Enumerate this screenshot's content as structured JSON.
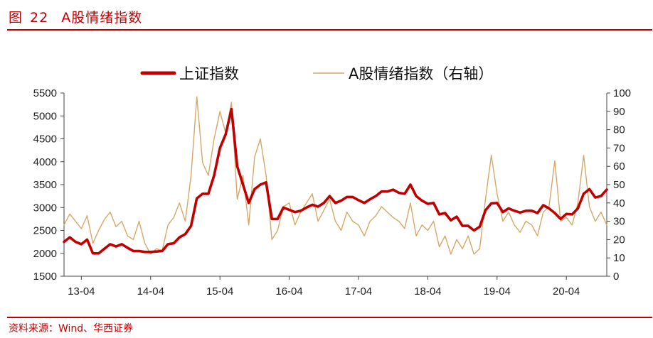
{
  "header": {
    "figure_label": "图",
    "figure_number": "22",
    "title": "A股情绪指数"
  },
  "source": "资料来源：Wind、华西证券",
  "colors": {
    "accent": "#c00000",
    "series_main": "#c00000",
    "series_sentiment": "#d4a868"
  },
  "chart_data": {
    "type": "line",
    "title": "A股情绪指数",
    "x_ticks": [
      "13-04",
      "14-04",
      "15-04",
      "16-04",
      "17-04",
      "18-04",
      "19-04",
      "20-04"
    ],
    "y_left": {
      "ticks": [
        1500,
        2000,
        2500,
        3000,
        3500,
        4000,
        4500,
        5000,
        5500
      ],
      "range": [
        1500,
        5500
      ]
    },
    "y_right": {
      "ticks": [
        0,
        10,
        20,
        30,
        40,
        50,
        60,
        70,
        80,
        90,
        100
      ],
      "range": [
        0,
        100
      ]
    },
    "legend": {
      "position": "top-center"
    },
    "grid": false,
    "series": [
      {
        "name": "上证指数",
        "axis": "left",
        "color": "#c00000",
        "points": [
          [
            "13-01",
            2250
          ],
          [
            "13-02",
            2350
          ],
          [
            "13-03",
            2250
          ],
          [
            "13-04",
            2200
          ],
          [
            "13-05",
            2300
          ],
          [
            "13-06",
            2000
          ],
          [
            "13-07",
            2000
          ],
          [
            "13-08",
            2100
          ],
          [
            "13-09",
            2200
          ],
          [
            "13-10",
            2150
          ],
          [
            "13-11",
            2200
          ],
          [
            "13-12",
            2120
          ],
          [
            "14-01",
            2050
          ],
          [
            "14-02",
            2050
          ],
          [
            "14-03",
            2030
          ],
          [
            "14-04",
            2030
          ],
          [
            "14-05",
            2040
          ],
          [
            "14-06",
            2050
          ],
          [
            "14-07",
            2200
          ],
          [
            "14-08",
            2220
          ],
          [
            "14-09",
            2350
          ],
          [
            "14-10",
            2420
          ],
          [
            "14-11",
            2600
          ],
          [
            "14-12",
            3200
          ],
          [
            "15-01",
            3300
          ],
          [
            "15-02",
            3300
          ],
          [
            "15-03",
            3700
          ],
          [
            "15-04",
            4300
          ],
          [
            "15-05",
            4600
          ],
          [
            "15-06",
            5150
          ],
          [
            "15-07",
            3900
          ],
          [
            "15-08",
            3500
          ],
          [
            "15-09",
            3100
          ],
          [
            "15-10",
            3400
          ],
          [
            "15-11",
            3500
          ],
          [
            "15-12",
            3550
          ],
          [
            "16-01",
            2750
          ],
          [
            "16-02",
            2750
          ],
          [
            "16-03",
            3000
          ],
          [
            "16-04",
            2950
          ],
          [
            "16-05",
            2900
          ],
          [
            "16-06",
            2930
          ],
          [
            "16-07",
            3000
          ],
          [
            "16-08",
            3060
          ],
          [
            "16-09",
            3020
          ],
          [
            "16-10",
            3100
          ],
          [
            "16-11",
            3250
          ],
          [
            "16-12",
            3100
          ],
          [
            "17-01",
            3150
          ],
          [
            "17-02",
            3230
          ],
          [
            "17-03",
            3230
          ],
          [
            "17-04",
            3160
          ],
          [
            "17-05",
            3100
          ],
          [
            "17-06",
            3180
          ],
          [
            "17-07",
            3250
          ],
          [
            "17-08",
            3350
          ],
          [
            "17-09",
            3350
          ],
          [
            "17-10",
            3390
          ],
          [
            "17-11",
            3320
          ],
          [
            "17-12",
            3300
          ],
          [
            "18-01",
            3500
          ],
          [
            "18-02",
            3250
          ],
          [
            "18-03",
            3150
          ],
          [
            "18-04",
            3080
          ],
          [
            "18-05",
            3100
          ],
          [
            "18-06",
            2850
          ],
          [
            "18-07",
            2880
          ],
          [
            "18-08",
            2720
          ],
          [
            "18-09",
            2800
          ],
          [
            "18-10",
            2600
          ],
          [
            "18-11",
            2600
          ],
          [
            "18-12",
            2500
          ],
          [
            "19-01",
            2580
          ],
          [
            "19-02",
            2940
          ],
          [
            "19-03",
            3090
          ],
          [
            "19-04",
            3100
          ],
          [
            "19-05",
            2900
          ],
          [
            "19-06",
            2980
          ],
          [
            "19-07",
            2930
          ],
          [
            "19-08",
            2890
          ],
          [
            "19-09",
            2930
          ],
          [
            "19-10",
            2930
          ],
          [
            "19-11",
            2880
          ],
          [
            "19-12",
            3050
          ],
          [
            "20-01",
            2980
          ],
          [
            "20-02",
            2880
          ],
          [
            "20-03",
            2750
          ],
          [
            "20-04",
            2860
          ],
          [
            "20-05",
            2850
          ],
          [
            "20-06",
            2980
          ],
          [
            "20-07",
            3300
          ],
          [
            "20-08",
            3400
          ],
          [
            "20-09",
            3220
          ],
          [
            "20-10",
            3250
          ],
          [
            "20-11",
            3390
          ]
        ]
      },
      {
        "name": "A股情绪指数（右轴）",
        "axis": "right",
        "color": "#d4a868",
        "points": [
          [
            "13-01",
            28
          ],
          [
            "13-02",
            34
          ],
          [
            "13-03",
            30
          ],
          [
            "13-04",
            26
          ],
          [
            "13-05",
            33
          ],
          [
            "13-06",
            18
          ],
          [
            "13-07",
            25
          ],
          [
            "13-08",
            31
          ],
          [
            "13-09",
            35
          ],
          [
            "13-10",
            27
          ],
          [
            "13-11",
            30
          ],
          [
            "13-12",
            22
          ],
          [
            "14-01",
            20
          ],
          [
            "14-02",
            30
          ],
          [
            "14-03",
            18
          ],
          [
            "14-04",
            12
          ],
          [
            "14-05",
            15
          ],
          [
            "14-06",
            14
          ],
          [
            "14-07",
            28
          ],
          [
            "14-08",
            32
          ],
          [
            "14-09",
            40
          ],
          [
            "14-10",
            30
          ],
          [
            "14-11",
            55
          ],
          [
            "14-12",
            98
          ],
          [
            "15-01",
            62
          ],
          [
            "15-02",
            55
          ],
          [
            "15-03",
            75
          ],
          [
            "15-04",
            90
          ],
          [
            "15-05",
            78
          ],
          [
            "15-06",
            95
          ],
          [
            "15-07",
            42
          ],
          [
            "15-08",
            55
          ],
          [
            "15-09",
            28
          ],
          [
            "15-10",
            65
          ],
          [
            "15-11",
            75
          ],
          [
            "15-12",
            55
          ],
          [
            "16-01",
            20
          ],
          [
            "16-02",
            25
          ],
          [
            "16-03",
            38
          ],
          [
            "16-04",
            40
          ],
          [
            "16-05",
            28
          ],
          [
            "16-06",
            35
          ],
          [
            "16-07",
            40
          ],
          [
            "16-08",
            45
          ],
          [
            "16-09",
            30
          ],
          [
            "16-10",
            36
          ],
          [
            "16-11",
            42
          ],
          [
            "16-12",
            30
          ],
          [
            "17-01",
            25
          ],
          [
            "17-02",
            35
          ],
          [
            "17-03",
            30
          ],
          [
            "17-04",
            28
          ],
          [
            "17-05",
            22
          ],
          [
            "17-06",
            30
          ],
          [
            "17-07",
            33
          ],
          [
            "17-08",
            38
          ],
          [
            "17-09",
            35
          ],
          [
            "17-10",
            32
          ],
          [
            "17-11",
            30
          ],
          [
            "17-12",
            26
          ],
          [
            "18-01",
            40
          ],
          [
            "18-02",
            22
          ],
          [
            "18-03",
            28
          ],
          [
            "18-04",
            25
          ],
          [
            "18-05",
            30
          ],
          [
            "18-06",
            16
          ],
          [
            "18-07",
            22
          ],
          [
            "18-08",
            12
          ],
          [
            "18-09",
            20
          ],
          [
            "18-10",
            15
          ],
          [
            "18-11",
            22
          ],
          [
            "18-12",
            12
          ],
          [
            "19-01",
            15
          ],
          [
            "19-02",
            42
          ],
          [
            "19-03",
            66
          ],
          [
            "19-04",
            45
          ],
          [
            "19-05",
            30
          ],
          [
            "19-06",
            35
          ],
          [
            "19-07",
            28
          ],
          [
            "19-08",
            24
          ],
          [
            "19-09",
            30
          ],
          [
            "19-10",
            28
          ],
          [
            "19-11",
            22
          ],
          [
            "19-12",
            35
          ],
          [
            "20-01",
            38
          ],
          [
            "20-02",
            63
          ],
          [
            "20-03",
            30
          ],
          [
            "20-04",
            32
          ],
          [
            "20-05",
            28
          ],
          [
            "20-06",
            40
          ],
          [
            "20-07",
            66
          ],
          [
            "20-08",
            38
          ],
          [
            "20-09",
            30
          ],
          [
            "20-10",
            35
          ],
          [
            "20-11",
            28
          ]
        ]
      }
    ]
  }
}
